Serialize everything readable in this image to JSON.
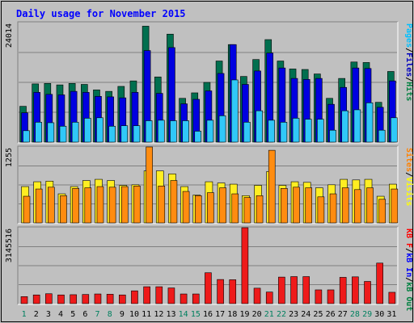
{
  "chart_data": {
    "type": "bar",
    "title": "Daily usage for November 2015",
    "days": [
      "1",
      "2",
      "3",
      "4",
      "5",
      "6",
      "7",
      "8",
      "9",
      "10",
      "11",
      "12",
      "13",
      "14",
      "15",
      "16",
      "17",
      "18",
      "19",
      "20",
      "21",
      "22",
      "23",
      "24",
      "25",
      "26",
      "27",
      "28",
      "29",
      "30",
      "31"
    ],
    "weekend_days": [
      "1",
      "7",
      "8",
      "14",
      "15",
      "21",
      "22",
      "28",
      "29"
    ],
    "panels": [
      {
        "name": "hits-files-pages",
        "max_label": "24014",
        "ymax": 24014,
        "legend": [
          {
            "text": "Pages",
            "color": "#00c0ff"
          },
          {
            "text": "/",
            "color": "#000000"
          },
          {
            "text": "Files",
            "color": "#0000c0"
          },
          {
            "text": "/",
            "color": "#000000"
          },
          {
            "text": "Hits",
            "color": "#008040"
          }
        ],
        "series": [
          {
            "name": "Hits",
            "color": "#006f4f",
            "values": [
              7200,
              11700,
              11800,
              11500,
              11800,
              11600,
              10500,
              10200,
              11200,
              12300,
              23300,
              13100,
              21700,
              8800,
              9900,
              12000,
              16300,
              19600,
              13200,
              16600,
              20600,
              16300,
              14700,
              14600,
              13700,
              8800,
              12800,
              16100,
              16000,
              8000,
              14200
            ]
          },
          {
            "name": "Files",
            "color": "#0000e0",
            "values": [
              5900,
              10000,
              9600,
              9500,
              10200,
              10000,
              9200,
              9100,
              8900,
              10000,
              18400,
              9800,
              19000,
              7700,
              8600,
              10300,
              13800,
              19600,
              11600,
              14300,
              17900,
              14900,
              12800,
              12600,
              12800,
              7600,
              11000,
              14900,
              14800,
              7000,
              12300
            ]
          },
          {
            "name": "Pages",
            "color": "#30c8f8",
            "values": [
              2300,
              4000,
              3900,
              3200,
              4000,
              4800,
              4900,
              3200,
              3300,
              3300,
              4300,
              4400,
              4300,
              4300,
              2200,
              4400,
              5300,
              12500,
              4000,
              6300,
              4400,
              4000,
              4800,
              4600,
              4600,
              2400,
              6300,
              6500,
              7900,
              2400,
              4900
            ]
          }
        ]
      },
      {
        "name": "visits-sites",
        "max_label": "1255",
        "ymax": 1255,
        "legend": [
          {
            "text": "Sites",
            "color": "#ff8000"
          },
          {
            "text": "/",
            "color": "#000000"
          },
          {
            "text": "Visits",
            "color": "#ffff00"
          }
        ],
        "series": [
          {
            "name": "Visits",
            "color": "#ffee22",
            "values": [
              600,
              680,
              690,
              480,
              600,
              700,
              720,
              700,
              620,
              630,
              860,
              860,
              810,
              600,
              460,
              680,
              660,
              640,
              450,
              620,
              850,
              620,
              680,
              670,
              580,
              630,
              720,
              710,
              720,
              440,
              640
            ]
          },
          {
            "name": "Sites",
            "color": "#ff8c10",
            "values": [
              440,
              560,
              590,
              450,
              570,
              580,
              600,
              590,
              600,
              610,
              1255,
              610,
              700,
              520,
              450,
              500,
              580,
              480,
              420,
              450,
              1200,
              570,
              590,
              580,
              430,
              480,
              580,
              550,
              580,
              390,
              560
            ]
          }
        ]
      },
      {
        "name": "kbytes",
        "max_label": "3145516",
        "ymax": 3145516,
        "legend": [
          {
            "text": "KB F",
            "color": "#ff0000"
          },
          {
            "text": "/",
            "color": "#000000"
          },
          {
            "text": "kB In",
            "color": "#0000ff"
          },
          {
            "text": "/",
            "color": "#000000"
          },
          {
            "text": "kB Out",
            "color": "#008040"
          }
        ],
        "series": [
          {
            "name": "KBytes",
            "color": "#ee1a1a",
            "values": [
              290000,
              360000,
              410000,
              360000,
              370000,
              380000,
              400000,
              390000,
              360000,
              530000,
              700000,
              700000,
              650000,
              400000,
              400000,
              1280000,
              1000000,
              990000,
              3145516,
              640000,
              480000,
              1100000,
              1120000,
              1120000,
              570000,
              570000,
              1090000,
              1110000,
              920000,
              1680000,
              470000
            ]
          }
        ]
      }
    ]
  }
}
